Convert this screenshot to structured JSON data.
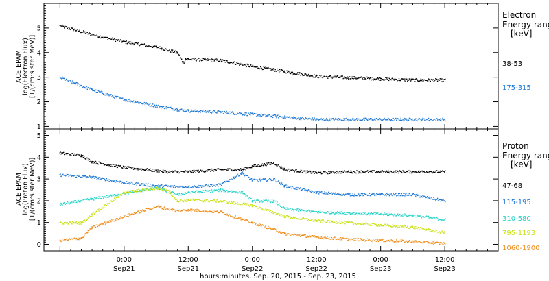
{
  "chart_data": [
    {
      "panel": "electron",
      "type": "scatter",
      "ylabel": [
        "ACE EPAM",
        "log(Electron Flux)",
        "[1/(cm²s ster MeV)]"
      ],
      "ylim": [
        0.9,
        6.0
      ],
      "y_ticks": [
        "1",
        "2",
        "3",
        "4",
        "5"
      ],
      "legend_title": [
        "Electron",
        "Energy ranges",
        "[keV]"
      ],
      "legend_placement": "right",
      "series": [
        {
          "name": "38-53",
          "color": "#000000",
          "x_hours": [
            -12,
            -6,
            0,
            6,
            10,
            11,
            11.5,
            12,
            18,
            24,
            30,
            36,
            42,
            48,
            54,
            60
          ],
          "values": [
            5.1,
            4.75,
            4.45,
            4.25,
            4.0,
            3.6,
            3.75,
            3.75,
            3.7,
            3.45,
            3.25,
            3.05,
            3.0,
            2.95,
            2.9,
            2.9
          ]
        },
        {
          "name": "175-315",
          "color": "#1f78d4",
          "x_hours": [
            -12,
            -6,
            0,
            6,
            10,
            12,
            18,
            24,
            30,
            36,
            42,
            48,
            54,
            60
          ],
          "values": [
            3.0,
            2.5,
            2.1,
            1.85,
            1.7,
            1.65,
            1.6,
            1.5,
            1.4,
            1.3,
            1.3,
            1.3,
            1.3,
            1.3
          ]
        }
      ]
    },
    {
      "panel": "proton",
      "type": "scatter",
      "ylabel": [
        "ACE EPAM",
        "log(Proton Flux)",
        "[1/(cm²s ster MeV)]"
      ],
      "ylim": [
        -0.3,
        5.3
      ],
      "y_ticks": [
        "0",
        "1",
        "2",
        "3",
        "4",
        "5"
      ],
      "legend_title": [
        "Proton",
        "Energy ranges",
        "[keV]"
      ],
      "legend_placement": "right",
      "series": [
        {
          "name": "47-68",
          "color": "#000000",
          "x_hours": [
            -12,
            -8,
            -6,
            0,
            8,
            12,
            18,
            22,
            24,
            28,
            30,
            36,
            42,
            48,
            54,
            60
          ],
          "values": [
            4.2,
            4.1,
            3.8,
            3.55,
            3.35,
            3.35,
            3.45,
            3.45,
            3.6,
            3.75,
            3.45,
            3.3,
            3.35,
            3.35,
            3.35,
            3.35
          ]
        },
        {
          "name": "115-195",
          "color": "#1f78d4",
          "x_hours": [
            -12,
            -6,
            0,
            6,
            12,
            18,
            22,
            24,
            28,
            30,
            36,
            42,
            48,
            54,
            60
          ],
          "values": [
            3.2,
            3.1,
            2.85,
            2.7,
            2.65,
            2.75,
            3.3,
            2.95,
            3.0,
            2.7,
            2.4,
            2.3,
            2.3,
            2.3,
            2.0
          ]
        },
        {
          "name": "310-580",
          "color": "#22d3c6",
          "x_hours": [
            -12,
            -6,
            0,
            6,
            10,
            12,
            18,
            22,
            24,
            28,
            30,
            36,
            42,
            48,
            54,
            60
          ],
          "values": [
            1.85,
            2.1,
            2.35,
            2.6,
            2.3,
            2.4,
            2.5,
            2.4,
            2.0,
            2.0,
            1.65,
            1.5,
            1.45,
            1.4,
            1.35,
            1.15
          ]
        },
        {
          "name": "795-1193",
          "color": "#c8e010",
          "x_hours": [
            -12,
            -8,
            -6,
            0,
            6,
            8,
            10,
            12,
            18,
            24,
            30,
            36,
            42,
            48,
            54,
            60
          ],
          "values": [
            1.0,
            1.0,
            1.4,
            2.4,
            2.6,
            2.5,
            2.0,
            2.05,
            2.0,
            1.8,
            1.3,
            1.1,
            1.0,
            0.9,
            0.8,
            0.55
          ]
        },
        {
          "name": "1060-1900",
          "color": "#ee8c1a",
          "x_hours": [
            -12,
            -8,
            -6,
            0,
            6,
            10,
            12,
            18,
            24,
            28,
            30,
            36,
            42,
            48,
            54,
            60
          ],
          "values": [
            0.2,
            0.3,
            0.8,
            1.3,
            1.75,
            1.55,
            1.6,
            1.5,
            1.0,
            0.7,
            0.5,
            0.35,
            0.25,
            0.2,
            0.15,
            0.05
          ]
        }
      ]
    }
  ],
  "x_axis": {
    "ticks": [
      {
        "hour": 0,
        "time": "0:00",
        "date": "Sep21"
      },
      {
        "hour": 12,
        "time": "12:00",
        "date": "Sep21"
      },
      {
        "hour": 24,
        "time": "0:00",
        "date": "Sep22"
      },
      {
        "hour": 36,
        "time": "12:00",
        "date": "Sep22"
      },
      {
        "hour": 48,
        "time": "0:00",
        "date": "Sep23"
      },
      {
        "hour": 60,
        "time": "12:00",
        "date": "Sep23"
      }
    ],
    "xlim_hours": [
      -15,
      70
    ],
    "label": "hours:minutes, Sep. 20, 2015 - Sep. 23, 2015"
  }
}
